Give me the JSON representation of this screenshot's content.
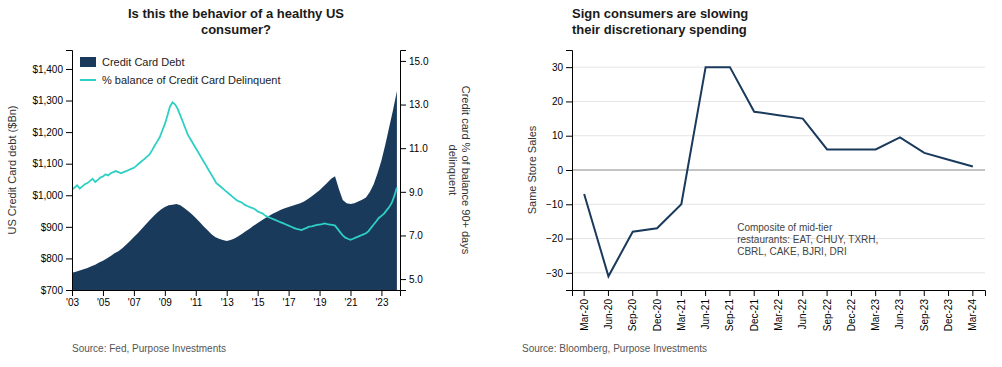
{
  "chart_data": [
    {
      "type": "area",
      "title": "Is this the behavior of a healthy US\nconsumer?",
      "source": "Source: Fed, Purpose Investments",
      "y_label": "US Credit Card debt ($Bn)",
      "y2_label": "Credit card % of balance 90+ days\ndelinquent",
      "xlim": [
        2003,
        2024.2
      ],
      "xticks": [
        {
          "value": 2003,
          "label": "'03"
        },
        {
          "value": 2005,
          "label": "'05"
        },
        {
          "value": 2007,
          "label": "'07"
        },
        {
          "value": 2009,
          "label": "'09"
        },
        {
          "value": 2011,
          "label": "'11"
        },
        {
          "value": 2013,
          "label": "'13"
        },
        {
          "value": 2015,
          "label": "'15"
        },
        {
          "value": 2017,
          "label": "'17"
        },
        {
          "value": 2019,
          "label": "'19"
        },
        {
          "value": 2021,
          "label": "'21"
        },
        {
          "value": 2023,
          "label": "'23"
        }
      ],
      "ylim": [
        700,
        1460
      ],
      "yticks": [
        {
          "value": 700,
          "label": "$700"
        },
        {
          "value": 800,
          "label": "$800"
        },
        {
          "value": 900,
          "label": "$900"
        },
        {
          "value": 1000,
          "label": "$1,000"
        },
        {
          "value": 1100,
          "label": "$1,100"
        },
        {
          "value": 1200,
          "label": "$1,200"
        },
        {
          "value": 1300,
          "label": "$1,300"
        },
        {
          "value": 1400,
          "label": "$1,400"
        }
      ],
      "y2lim": [
        4.5,
        15.5
      ],
      "y2ticks": [
        {
          "value": 5.0,
          "label": "5.0"
        },
        {
          "value": 7.0,
          "label": "7.0"
        },
        {
          "value": 9.0,
          "label": "9.0"
        },
        {
          "value": 11.0,
          "label": "11.0"
        },
        {
          "value": 13.0,
          "label": "13.0"
        },
        {
          "value": 15.0,
          "label": "15.0"
        }
      ],
      "grid": false,
      "legend": "upper left",
      "series": [
        {
          "name": "Credit Card Debt",
          "type": "area",
          "color": "#1a3a5c",
          "x": [
            2003,
            2003.25,
            2003.5,
            2003.75,
            2004,
            2004.25,
            2004.5,
            2004.75,
            2005,
            2005.25,
            2005.5,
            2005.75,
            2006,
            2006.25,
            2006.5,
            2006.75,
            2007,
            2007.25,
            2007.5,
            2007.75,
            2008,
            2008.25,
            2008.5,
            2008.75,
            2009,
            2009.25,
            2009.5,
            2009.75,
            2010,
            2010.25,
            2010.5,
            2010.75,
            2011,
            2011.25,
            2011.5,
            2011.75,
            2012,
            2012.25,
            2012.5,
            2012.75,
            2013,
            2013.25,
            2013.5,
            2013.75,
            2014,
            2014.25,
            2014.5,
            2014.75,
            2015,
            2015.25,
            2015.5,
            2015.75,
            2016,
            2016.25,
            2016.5,
            2016.75,
            2017,
            2017.25,
            2017.5,
            2017.75,
            2018,
            2018.25,
            2018.5,
            2018.75,
            2019,
            2019.25,
            2019.5,
            2019.75,
            2020,
            2020.25,
            2020.5,
            2020.75,
            2021,
            2021.25,
            2021.5,
            2021.75,
            2022,
            2022.25,
            2022.5,
            2022.75,
            2023,
            2023.25,
            2023.5,
            2023.75,
            2024
          ],
          "values": [
            755,
            758,
            762,
            766,
            770,
            775,
            780,
            787,
            793,
            800,
            808,
            816,
            823,
            832,
            843,
            855,
            868,
            880,
            893,
            907,
            920,
            933,
            945,
            955,
            963,
            968,
            970,
            972,
            968,
            960,
            950,
            940,
            928,
            915,
            902,
            890,
            877,
            868,
            862,
            858,
            855,
            858,
            863,
            870,
            878,
            887,
            895,
            904,
            912,
            920,
            928,
            935,
            942,
            948,
            954,
            959,
            963,
            967,
            971,
            975,
            980,
            988,
            997,
            1006,
            1016,
            1028,
            1040,
            1052,
            1060,
            1020,
            985,
            975,
            972,
            975,
            980,
            986,
            993,
            1010,
            1035,
            1070,
            1110,
            1160,
            1215,
            1270,
            1330
          ]
        },
        {
          "name": "% balance of Credit Card Delinquent",
          "type": "line",
          "axis": "y2",
          "color": "#2ecfc4",
          "x": [
            2003,
            2003.17,
            2003.33,
            2003.5,
            2003.67,
            2003.83,
            2004,
            2004.17,
            2004.33,
            2004.5,
            2004.67,
            2004.83,
            2005,
            2005.17,
            2005.33,
            2005.5,
            2005.67,
            2005.83,
            2006,
            2006.17,
            2006.33,
            2006.5,
            2006.67,
            2006.83,
            2007,
            2007.17,
            2007.33,
            2007.5,
            2007.67,
            2007.83,
            2008,
            2008.17,
            2008.33,
            2008.5,
            2008.67,
            2008.83,
            2009,
            2009.17,
            2009.33,
            2009.5,
            2009.67,
            2009.83,
            2010,
            2010.17,
            2010.33,
            2010.5,
            2010.67,
            2010.83,
            2011,
            2011.17,
            2011.33,
            2011.5,
            2011.67,
            2011.83,
            2012,
            2012.17,
            2012.33,
            2012.5,
            2012.67,
            2012.83,
            2013,
            2013.17,
            2013.33,
            2013.5,
            2013.67,
            2013.83,
            2014,
            2014.17,
            2014.33,
            2014.5,
            2014.67,
            2014.83,
            2015,
            2015.17,
            2015.33,
            2015.5,
            2015.67,
            2015.83,
            2016,
            2016.17,
            2016.33,
            2016.5,
            2016.67,
            2016.83,
            2017,
            2017.17,
            2017.33,
            2017.5,
            2017.67,
            2017.83,
            2018,
            2018.17,
            2018.33,
            2018.5,
            2018.67,
            2018.83,
            2019,
            2019.17,
            2019.33,
            2019.5,
            2019.67,
            2019.83,
            2020,
            2020.17,
            2020.33,
            2020.5,
            2020.67,
            2020.83,
            2021,
            2021.17,
            2021.33,
            2021.5,
            2021.67,
            2021.83,
            2022,
            2022.17,
            2022.33,
            2022.5,
            2022.67,
            2022.83,
            2023,
            2023.17,
            2023.33,
            2023.5,
            2023.67,
            2023.83,
            2024
          ],
          "values": [
            9.1,
            9.2,
            9.3,
            9.15,
            9.25,
            9.35,
            9.4,
            9.5,
            9.6,
            9.45,
            9.55,
            9.65,
            9.7,
            9.8,
            9.75,
            9.85,
            9.9,
            9.95,
            9.9,
            9.85,
            9.9,
            9.95,
            10.0,
            10.05,
            10.1,
            10.2,
            10.3,
            10.4,
            10.5,
            10.6,
            10.7,
            10.9,
            11.1,
            11.3,
            11.5,
            11.8,
            12.1,
            12.5,
            12.9,
            13.1,
            13.0,
            12.8,
            12.5,
            12.2,
            11.9,
            11.6,
            11.4,
            11.2,
            11.0,
            10.8,
            10.6,
            10.4,
            10.2,
            10.0,
            9.8,
            9.6,
            9.4,
            9.3,
            9.2,
            9.1,
            9.0,
            8.9,
            8.8,
            8.7,
            8.6,
            8.55,
            8.5,
            8.4,
            8.35,
            8.3,
            8.25,
            8.2,
            8.1,
            8.05,
            8.0,
            7.9,
            7.85,
            7.8,
            7.75,
            7.7,
            7.65,
            7.6,
            7.55,
            7.5,
            7.45,
            7.4,
            7.35,
            7.3,
            7.28,
            7.25,
            7.3,
            7.35,
            7.4,
            7.42,
            7.45,
            7.48,
            7.5,
            7.52,
            7.55,
            7.52,
            7.5,
            7.48,
            7.45,
            7.3,
            7.15,
            7.0,
            6.9,
            6.85,
            6.8,
            6.85,
            6.9,
            6.95,
            7.0,
            7.05,
            7.1,
            7.2,
            7.35,
            7.5,
            7.65,
            7.8,
            7.9,
            8.0,
            8.15,
            8.3,
            8.5,
            8.8,
            9.2
          ]
        }
      ]
    },
    {
      "type": "line",
      "title": "Sign consumers are slowing\ntheir discretionary spending",
      "source": "Source: Bloomberg, Purpose Investments",
      "y_label": "Same Store Sales",
      "annotation": "Composite of mid-tier\nrestaurants: EAT, CHUY, TXRH,\nCBRL, CAKE, BJRI, DRI",
      "categories": [
        "Mar-20",
        "Jun-20",
        "Sep-20",
        "Dec-20",
        "Mar-21",
        "Jun-21",
        "Sep-21",
        "Dec-21",
        "Mar-22",
        "Jun-22",
        "Sep-22",
        "Dec-22",
        "Mar-23",
        "Jun-23",
        "Sep-23",
        "Dec-23",
        "Mar-24"
      ],
      "values": [
        -7,
        -31,
        -18,
        -17,
        -10,
        30,
        30,
        17,
        16,
        15,
        6,
        6,
        6,
        9.5,
        5,
        3,
        1
      ],
      "color": "#1a3a5c",
      "ylim": [
        -35,
        35
      ],
      "yticks": [
        {
          "value": -30,
          "label": "−30"
        },
        {
          "value": -20,
          "label": "−20"
        },
        {
          "value": -10,
          "label": "−10"
        },
        0,
        10,
        20,
        30
      ],
      "grid": true
    }
  ]
}
